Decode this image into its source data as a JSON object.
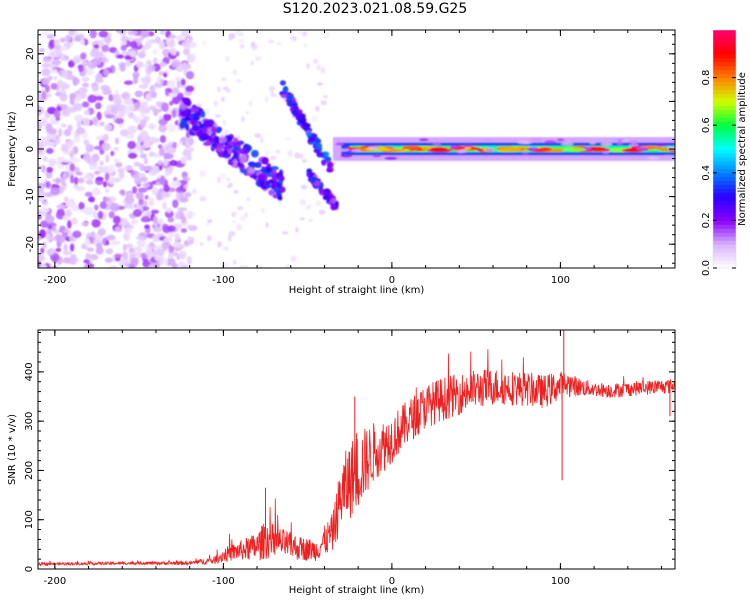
{
  "title": "S120.2023.021.08.59.G25",
  "chart_data": [
    {
      "type": "heatmap",
      "xlabel": "Height of straight line (km)",
      "ylabel": "Frequency (Hz)",
      "xlim": [
        -210,
        168
      ],
      "ylim": [
        -25,
        25
      ],
      "x_ticks": [
        -200,
        -100,
        0,
        100
      ],
      "y_ticks": [
        -20,
        -10,
        0,
        10,
        20
      ],
      "colorbar": {
        "label": "Normalized spectral amplitude",
        "range": [
          0,
          1
        ],
        "ticks": [
          "0.0",
          "0.2",
          "0.4",
          "0.6",
          "0.8"
        ],
        "colors": [
          "#ffffff",
          "#d9b3ff",
          "#8a00ff",
          "#2a00ff",
          "#0080ff",
          "#00ffff",
          "#00ff40",
          "#d0ff00",
          "#ff8000",
          "#ff0000",
          "#ff0070"
        ]
      },
      "features": [
        {
          "name": "scattered noise",
          "x": [
            -210,
            -120
          ],
          "y": [
            -25,
            25
          ],
          "amplitude": 0.1
        },
        {
          "name": "descending branch",
          "x": [
            -125,
            -65
          ],
          "y": [
            8,
            -8
          ],
          "amplitude": 0.3
        },
        {
          "name": "upper branch",
          "x": [
            -65,
            -35
          ],
          "y": [
            13,
            -5
          ],
          "amplitude": 0.35
        },
        {
          "name": "lower branch",
          "x": [
            -50,
            -33
          ],
          "y": [
            -5,
            -12
          ],
          "amplitude": 0.3
        },
        {
          "name": "constant line",
          "x": [
            -35,
            168
          ],
          "y": [
            0,
            0
          ],
          "amplitude": 0.95
        }
      ]
    },
    {
      "type": "line",
      "xlabel": "Height of straight line (km)",
      "ylabel": "SNR (10 * v/v)",
      "xlim": [
        -210,
        168
      ],
      "ylim": [
        0,
        485
      ],
      "x_ticks": [
        -200,
        -100,
        0,
        100
      ],
      "y_ticks": [
        0,
        100,
        200,
        300,
        400
      ],
      "series": [
        {
          "color": "#ee2020",
          "x": [
            -210,
            -180,
            -150,
            -120,
            -105,
            -100,
            -90,
            -80,
            -75,
            -65,
            -55,
            -45,
            -35,
            -30,
            -25,
            -20,
            -15,
            -10,
            -5,
            0,
            10,
            20,
            30,
            40,
            50,
            60,
            70,
            80,
            90,
            100,
            105,
            110,
            120,
            130,
            140,
            150,
            160,
            168
          ],
          "values": [
            10,
            11,
            12,
            12,
            18,
            28,
            38,
            45,
            60,
            52,
            42,
            38,
            75,
            150,
            180,
            200,
            220,
            240,
            250,
            265,
            300,
            330,
            345,
            355,
            365,
            370,
            368,
            365,
            360,
            372,
            375,
            370,
            365,
            362,
            365,
            368,
            370,
            372
          ],
          "amplitude": [
            3,
            3,
            3,
            4,
            8,
            15,
            20,
            30,
            40,
            30,
            25,
            22,
            40,
            70,
            80,
            80,
            70,
            60,
            55,
            50,
            45,
            45,
            45,
            42,
            40,
            38,
            36,
            35,
            34,
            30,
            25,
            20,
            15,
            15,
            15,
            15,
            15,
            15
          ]
        }
      ],
      "annotations": [
        {
          "x": -75,
          "y": 165,
          "type": "spike"
        },
        {
          "x": -22,
          "y": 350,
          "type": "spike"
        },
        {
          "x": 102,
          "y": 485,
          "type": "spike"
        },
        {
          "x": 101,
          "y": 180,
          "type": "dip"
        },
        {
          "x": 165,
          "y": 310,
          "type": "dip"
        }
      ]
    }
  ]
}
